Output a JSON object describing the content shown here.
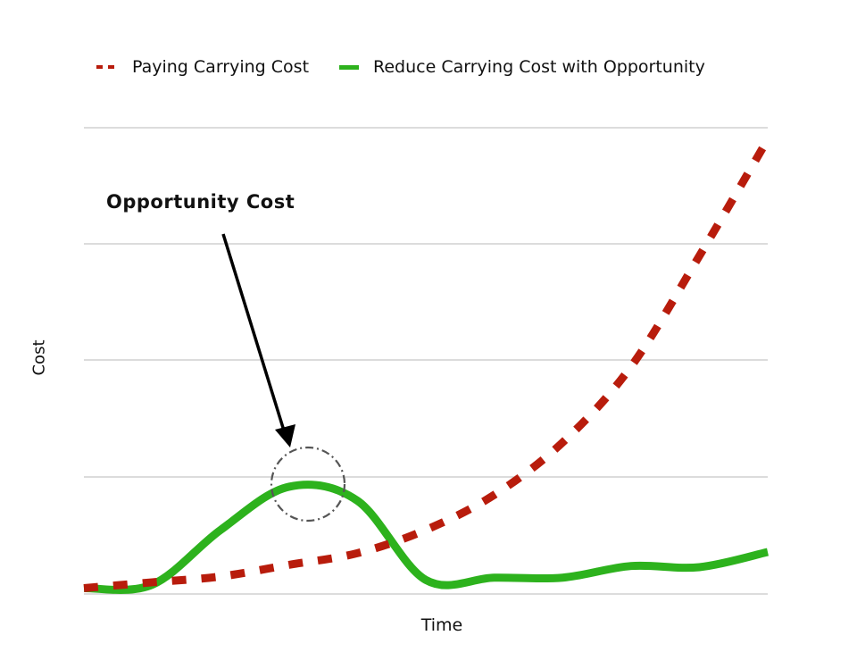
{
  "legend": {
    "series_1": "Paying Carrying Cost",
    "series_2": "Reduce Carrying Cost with Opportunity"
  },
  "annotation": {
    "text": "Opportunity Cost"
  },
  "axes": {
    "xlabel": "Time",
    "ylabel": "Cost"
  },
  "colors": {
    "paying": "#b81c0c",
    "reduce": "#2db21d",
    "grid": "#c8c8c8",
    "circle": "#555555",
    "arrow": "#000000"
  },
  "chart_data": {
    "type": "line",
    "title": "",
    "xlabel": "Time",
    "ylabel": "Cost",
    "x": [
      0,
      1,
      2,
      3,
      4,
      5,
      6,
      7,
      8,
      9,
      10
    ],
    "ylim": [
      0,
      4
    ],
    "yticks_labeled": false,
    "grid": true,
    "gridlines_y": [
      0,
      1,
      2,
      3,
      4
    ],
    "legend_position": "top",
    "series": [
      {
        "name": "Paying Carrying Cost",
        "style": "dashed",
        "color": "#b81c0c",
        "values": [
          0.05,
          0.1,
          0.15,
          0.25,
          0.35,
          0.55,
          0.85,
          1.3,
          1.95,
          2.9,
          3.9
        ]
      },
      {
        "name": "Reduce Carrying Cost with Opportunity",
        "style": "solid",
        "color": "#2db21d",
        "values": [
          0.05,
          0.08,
          0.55,
          0.92,
          0.8,
          0.12,
          0.14,
          0.14,
          0.24,
          0.23,
          0.36
        ]
      }
    ],
    "annotations": [
      {
        "text": "Opportunity Cost",
        "type": "arrow",
        "points_to_x": 3.3,
        "points_to_y": 0.92,
        "highlight": "dash-dot circle around green peak"
      }
    ]
  }
}
